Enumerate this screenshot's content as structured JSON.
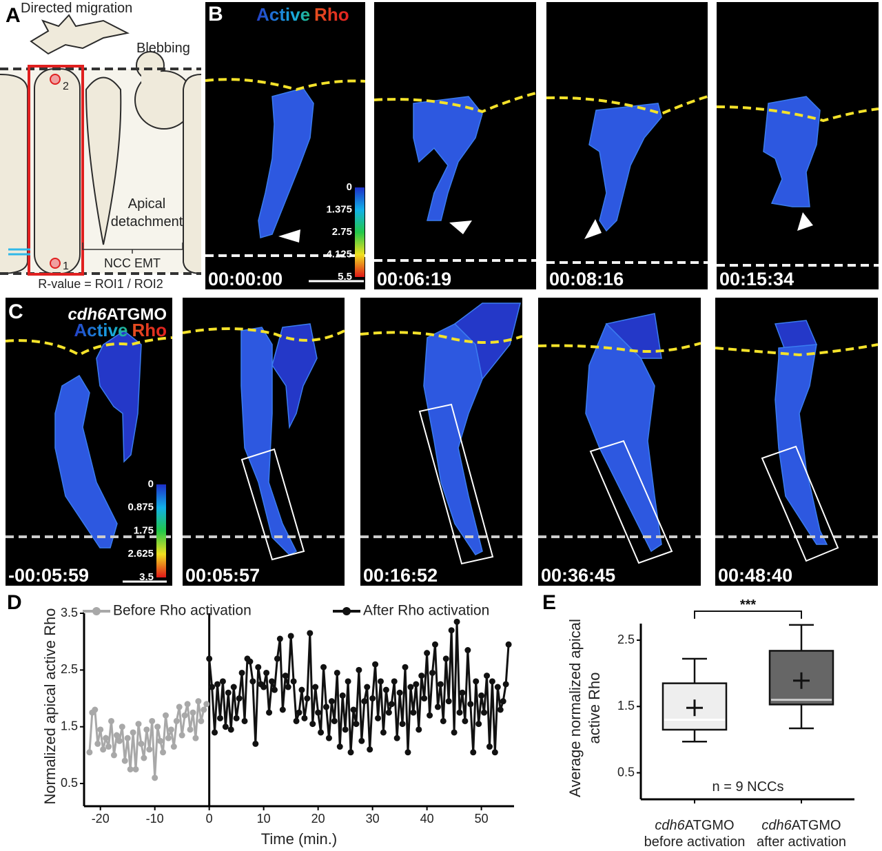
{
  "panel_a": {
    "label": "A",
    "directed_migration": "Directed migration",
    "blebbing": "Blebbing",
    "apical_detachment": [
      "Apical",
      "detachment"
    ],
    "ncc_emt": "NCC EMT",
    "r_value": "R-value = ROI1 / ROI2",
    "roi_labels": [
      "1",
      "2"
    ]
  },
  "panel_b": {
    "label": "B",
    "title": [
      "Active",
      "Rho"
    ],
    "timestamps": [
      "00:00:00",
      "00:06:19",
      "00:08:16",
      "00:15:34"
    ],
    "colorbar": {
      "lim": [
        0,
        5.5
      ],
      "ticks": [
        0,
        1.375,
        2.75,
        4.125,
        5.5
      ]
    }
  },
  "panel_c": {
    "label": "C",
    "morpholino": {
      "italic": "cdh6",
      "rest": "ATGMO"
    },
    "title": [
      "Active",
      "Rho"
    ],
    "timestamps": [
      "-00:05:59",
      "00:05:57",
      "00:16:52",
      "00:36:45",
      "00:48:40"
    ],
    "colorbar": {
      "lim": [
        0,
        3.5
      ],
      "ticks": [
        0,
        0.875,
        1.75,
        2.625,
        3.5
      ]
    }
  },
  "chart_data": [
    {
      "panel_label": "D",
      "type": "line",
      "xlabel": "Time (min.)",
      "ylabel": "Normalized apical active Rho",
      "xlim": [
        -23,
        56
      ],
      "ylim": [
        0.1,
        3.5
      ],
      "xticks": [
        -20,
        -10,
        0,
        10,
        20,
        30,
        40,
        50
      ],
      "yticks": [
        0.5,
        1.5,
        2.5,
        3.5
      ],
      "vline": 0,
      "series": [
        {
          "name": "Before Rho activation",
          "color": "#a8a8a8",
          "x": [
            -22,
            -21.5,
            -21,
            -20.5,
            -20,
            -19.5,
            -19,
            -18.5,
            -18,
            -17.5,
            -17,
            -16.5,
            -16,
            -15.5,
            -15,
            -14.5,
            -14,
            -13.5,
            -13,
            -12.5,
            -12,
            -11.5,
            -11,
            -10.5,
            -10,
            -9.5,
            -9,
            -8.5,
            -8,
            -7.5,
            -7,
            -6.5,
            -6,
            -5.5,
            -5,
            -4.5,
            -4,
            -3.5,
            -3,
            -2.5,
            -2,
            -1.5,
            -1,
            -0.5
          ],
          "values": [
            1.05,
            1.75,
            1.8,
            1.2,
            1.45,
            1.1,
            1.3,
            1.15,
            1.6,
            1.0,
            1.35,
            1.25,
            1.5,
            0.9,
            1.3,
            0.75,
            1.4,
            0.75,
            1.55,
            1.2,
            0.95,
            1.45,
            1.1,
            1.6,
            0.6,
            1.5,
            1.25,
            1.05,
            1.7,
            1.3,
            1.45,
            1.15,
            1.6,
            1.85,
            1.35,
            1.7,
            1.9,
            1.45,
            1.75,
            1.3,
            1.95,
            1.6,
            1.8,
            1.9
          ]
        },
        {
          "name": "After Rho activation",
          "color": "#111111",
          "x": [
            0,
            0.5,
            1,
            1.5,
            2,
            2.5,
            3,
            3.5,
            4,
            4.5,
            5,
            5.5,
            6,
            6.5,
            7,
            7.5,
            8,
            8.5,
            9,
            9.5,
            10,
            10.5,
            11,
            11.5,
            12,
            12.5,
            13,
            13.5,
            14,
            14.5,
            15,
            15.5,
            16,
            16.5,
            17,
            17.5,
            18,
            18.5,
            19,
            19.5,
            20,
            20.5,
            21,
            21.5,
            22,
            22.5,
            23,
            23.5,
            24,
            24.5,
            25,
            25.5,
            26,
            26.5,
            27,
            27.5,
            28,
            28.5,
            29,
            29.5,
            30,
            30.5,
            31,
            31.5,
            32,
            32.5,
            33,
            33.5,
            34,
            34.5,
            35,
            35.5,
            36,
            36.5,
            37,
            37.5,
            38,
            38.5,
            39,
            39.5,
            40,
            40.5,
            41,
            41.5,
            42,
            42.5,
            43,
            43.5,
            44,
            44.5,
            45,
            45.5,
            46,
            46.5,
            47,
            47.5,
            48,
            48.5,
            49,
            49.5,
            50,
            50.5,
            51,
            51.5,
            52,
            52.5,
            53,
            53.5,
            54,
            54.5,
            55
          ],
          "values": [
            2.7,
            2.2,
            1.4,
            2.25,
            1.65,
            2.3,
            1.5,
            2.1,
            1.45,
            2.2,
            1.65,
            2.0,
            2.45,
            1.6,
            2.7,
            2.65,
            2.3,
            1.2,
            2.55,
            2.25,
            2.2,
            2.45,
            1.75,
            2.3,
            2.15,
            2.7,
            3.05,
            1.8,
            2.4,
            2.2,
            3.1,
            2.3,
            1.6,
            1.75,
            2.15,
            1.65,
            2.0,
            3.15,
            1.55,
            2.2,
            1.75,
            1.4,
            2.55,
            1.85,
            1.3,
            1.95,
            1.6,
            2.45,
            1.15,
            2.05,
            1.45,
            2.3,
            1.05,
            1.8,
            1.55,
            2.5,
            1.25,
            1.95,
            2.2,
            1.1,
            2.0,
            2.6,
            1.65,
            2.3,
            1.4,
            2.15,
            1.75,
            1.9,
            2.3,
            1.3,
            2.1,
            1.55,
            2.55,
            1.05,
            2.2,
            1.75,
            2.25,
            1.45,
            2.4,
            2.0,
            2.8,
            1.7,
            2.45,
            2.95,
            1.85,
            2.25,
            1.6,
            2.7,
            1.95,
            3.2,
            1.4,
            3.35,
            1.75,
            2.1,
            1.6,
            2.85,
            1.9,
            1.05,
            2.3,
            1.55,
            2.05,
            1.75,
            2.4,
            1.15,
            2.3,
            1.05,
            2.2,
            1.8,
            1.95,
            2.25,
            2.95
          ]
        }
      ]
    },
    {
      "panel_label": "E",
      "type": "box",
      "ylabel": [
        "Average normalized apical",
        "active Rho"
      ],
      "ylim": [
        0.1,
        2.75
      ],
      "yticks": [
        0.5,
        1.5,
        2.5
      ],
      "categories": [
        {
          "italic": "cdh6",
          "rest": "ATGMO",
          "line2": "before activation"
        },
        {
          "italic": "cdh6",
          "rest": "ATGMO",
          "line2": "after activation"
        }
      ],
      "boxes": [
        {
          "color": "#eeeeee",
          "median_color": "#ffffff",
          "whislo": 0.97,
          "q1": 1.15,
          "median": 1.3,
          "q3": 1.85,
          "whishi": 2.22,
          "mean": 1.48
        },
        {
          "color": "#666666",
          "median_color": "#cccccc",
          "whislo": 1.17,
          "q1": 1.53,
          "median": 1.6,
          "q3": 2.34,
          "whishi": 2.73,
          "mean": 1.89
        }
      ],
      "significance": "***",
      "annotation": "n = 9 NCCs"
    }
  ]
}
